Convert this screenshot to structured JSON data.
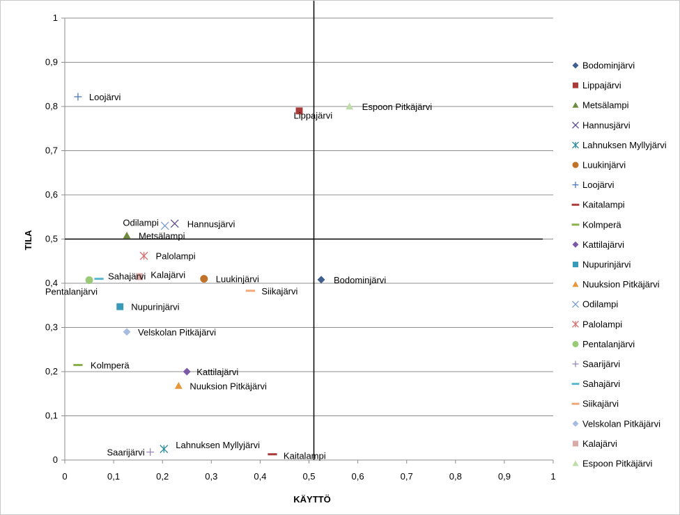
{
  "chart_data": {
    "type": "scatter",
    "title": "",
    "xlabel": "KÄYTTÖ",
    "ylabel": "TILA",
    "xlim": [
      0,
      1
    ],
    "ylim": [
      0,
      1
    ],
    "x_ticks": [
      "0",
      "0,1",
      "0,2",
      "0,3",
      "0,4",
      "0,5",
      "0,6",
      "0,7",
      "0,8",
      "0,9",
      "1"
    ],
    "y_ticks": [
      "0",
      "0,1",
      "0,2",
      "0,3",
      "0,4",
      "0,5",
      "0,6",
      "0,7",
      "0,8",
      "0,9",
      "1"
    ],
    "gridlines": "horizontal",
    "reference_lines": {
      "x": 0.51,
      "y": 0.5
    },
    "legend_position": "right",
    "series": [
      {
        "name": "Bodominjärvi",
        "x": 0.525,
        "y": 0.408,
        "label": "Bodominjärvi",
        "marker": "diamond",
        "color": "#3F5F8F"
      },
      {
        "name": "Lippajärvi",
        "x": 0.48,
        "y": 0.79,
        "label": "Lippajärvi",
        "marker": "square",
        "color": "#A83A3A"
      },
      {
        "name": "Metsälampi",
        "x": 0.127,
        "y": 0.508,
        "label": "Metsälampi",
        "marker": "triangle",
        "color": "#6E8B3D"
      },
      {
        "name": "Hannusjärvi",
        "x": 0.225,
        "y": 0.535,
        "label": "Hannusjärvi",
        "marker": "x",
        "color": "#5A4A8A"
      },
      {
        "name": "Lahnuksen Myllyjärvi",
        "x": 0.203,
        "y": 0.025,
        "label": "Lahnuksen Myllyjärvi",
        "marker": "asterisk",
        "color": "#2A8A9A"
      },
      {
        "name": "Luukinjärvi",
        "x": 0.285,
        "y": 0.41,
        "label": "Luukinjärvi",
        "marker": "circle",
        "color": "#C0722A"
      },
      {
        "name": "Loojärvi",
        "x": 0.027,
        "y": 0.822,
        "label": "Loojärvi",
        "marker": "plus",
        "color": "#4A78C0"
      },
      {
        "name": "Kaitalampi",
        "x": 0.425,
        "y": 0.013,
        "label": "Kaitalampi",
        "marker": "dash",
        "color": "#A83A3A"
      },
      {
        "name": "Kolmperä",
        "x": 0.027,
        "y": 0.215,
        "label": "Kolmperä",
        "marker": "dash",
        "color": "#8AB04A"
      },
      {
        "name": "Kattilajärvi",
        "x": 0.25,
        "y": 0.2,
        "label": "Kattilajärvi",
        "marker": "diamond",
        "color": "#7A5AA8"
      },
      {
        "name": "Nupurinjärvi",
        "x": 0.113,
        "y": 0.347,
        "label": "Nupurinjärvi",
        "marker": "square",
        "color": "#3A9AB8"
      },
      {
        "name": "Nuuksion Pitkäjärvi",
        "x": 0.233,
        "y": 0.168,
        "label": "Nuuksion Pitkäjärvi",
        "marker": "triangle",
        "color": "#E8963A"
      },
      {
        "name": "Odilampi",
        "x": 0.205,
        "y": 0.53,
        "label": "Odilampi",
        "marker": "x",
        "color": "#7A9AD0"
      },
      {
        "name": "Palolampi",
        "x": 0.162,
        "y": 0.462,
        "label": "Palolampi",
        "marker": "asterisk",
        "color": "#D87070"
      },
      {
        "name": "Pentalanjärvi",
        "x": 0.05,
        "y": 0.407,
        "label": "Pentalanjärvi",
        "marker": "circle",
        "color": "#9ACA78"
      },
      {
        "name": "Saarijärvi",
        "x": 0.175,
        "y": 0.018,
        "label": "Saarijärvi",
        "marker": "plus",
        "color": "#9A8AB8"
      },
      {
        "name": "Sahajärvi",
        "x": 0.07,
        "y": 0.41,
        "label": "Sahajärvi",
        "marker": "dash",
        "color": "#5AB8D0"
      },
      {
        "name": "Siikajärvi",
        "x": 0.38,
        "y": 0.383,
        "label": "Siikajärvi",
        "marker": "dash",
        "color": "#F0A878"
      },
      {
        "name": "Velskolan Pitkäjärvi",
        "x": 0.127,
        "y": 0.29,
        "label": "Velskolan Pitkäjärvi",
        "marker": "diamond",
        "color": "#A8BCE0"
      },
      {
        "name": "Kalajärvi",
        "x": 0.153,
        "y": 0.415,
        "label": "Kalajärvi",
        "marker": "square",
        "color": "#D8AAAA"
      },
      {
        "name": "Espoon Pitkäjärvi",
        "x": 0.583,
        "y": 0.8,
        "label": "Espoon Pitkäjärvi",
        "marker": "triangle",
        "color": "#C0DCA8"
      }
    ]
  }
}
